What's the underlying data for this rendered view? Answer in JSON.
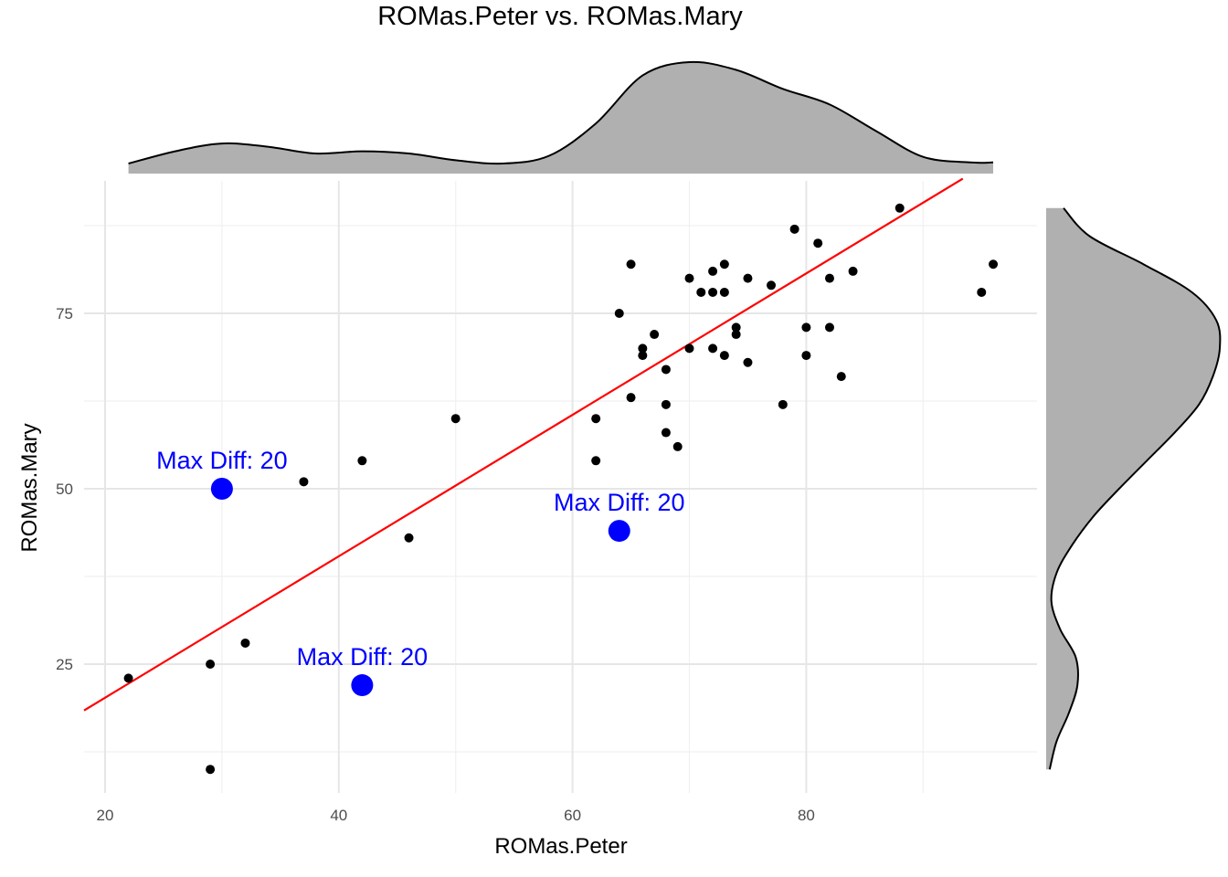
{
  "chart_data": {
    "type": "scatter",
    "title": "ROMas.Peter vs. ROMas.Mary",
    "xlabel": "ROMas.Peter",
    "ylabel": "ROMas.Mary",
    "xlim": [
      18,
      98
    ],
    "ylim": [
      6,
      94
    ],
    "x_ticks": [
      20,
      40,
      60,
      80
    ],
    "y_ticks": [
      25,
      50,
      75
    ],
    "grid": true,
    "legend": "none",
    "point_color": "#000000",
    "regression_line": {
      "color": "#ff0000",
      "from": [
        18.2,
        18.4
      ],
      "to": [
        93.4,
        94.2
      ]
    },
    "points": [
      [
        22,
        23
      ],
      [
        29,
        25
      ],
      [
        29,
        10
      ],
      [
        32,
        28
      ],
      [
        37,
        51
      ],
      [
        42,
        54
      ],
      [
        46,
        43
      ],
      [
        50,
        60
      ],
      [
        62,
        60
      ],
      [
        62,
        54
      ],
      [
        64,
        75
      ],
      [
        65,
        82
      ],
      [
        65,
        63
      ],
      [
        66,
        70
      ],
      [
        66,
        69
      ],
      [
        67,
        72
      ],
      [
        68,
        67
      ],
      [
        68,
        62
      ],
      [
        68,
        58
      ],
      [
        69,
        56
      ],
      [
        70,
        80
      ],
      [
        70,
        70
      ],
      [
        71,
        78
      ],
      [
        72,
        81
      ],
      [
        72,
        78
      ],
      [
        72,
        70
      ],
      [
        73,
        82
      ],
      [
        73,
        78
      ],
      [
        73,
        69
      ],
      [
        74,
        73
      ],
      [
        74,
        72
      ],
      [
        75,
        80
      ],
      [
        75,
        68
      ],
      [
        77,
        79
      ],
      [
        78,
        62
      ],
      [
        79,
        87
      ],
      [
        80,
        73
      ],
      [
        80,
        69
      ],
      [
        81,
        85
      ],
      [
        82,
        80
      ],
      [
        82,
        73
      ],
      [
        83,
        66
      ],
      [
        84,
        81
      ],
      [
        88,
        90
      ],
      [
        95,
        78
      ],
      [
        96,
        82
      ]
    ],
    "highlighted": {
      "color": "#0000ff",
      "points": [
        {
          "x": 30,
          "y": 50,
          "label": "Max Diff: 20"
        },
        {
          "x": 64,
          "y": 44,
          "label": "Max Diff: 20"
        },
        {
          "x": 42,
          "y": 22,
          "label": "Max Diff: 20"
        }
      ]
    },
    "marginal_x_density": {
      "fill": "#b0b0b0",
      "x": [
        22,
        26,
        30,
        34,
        38,
        42,
        46,
        50,
        54,
        58,
        62,
        66,
        70,
        74,
        78,
        82,
        86,
        90,
        94,
        96
      ],
      "density": [
        0.09,
        0.2,
        0.27,
        0.24,
        0.18,
        0.2,
        0.18,
        0.12,
        0.09,
        0.16,
        0.45,
        0.88,
        1.0,
        0.93,
        0.76,
        0.62,
        0.38,
        0.15,
        0.1,
        0.1
      ]
    },
    "marginal_y_density": {
      "fill": "#b0b0b0",
      "y": [
        10,
        14,
        18,
        22,
        26,
        30,
        34,
        38,
        42,
        46,
        50,
        54,
        58,
        62,
        66,
        70,
        74,
        78,
        82,
        86,
        90
      ],
      "density": [
        0.02,
        0.06,
        0.13,
        0.18,
        0.17,
        0.08,
        0.03,
        0.06,
        0.15,
        0.27,
        0.42,
        0.58,
        0.74,
        0.88,
        0.96,
        1.0,
        0.98,
        0.84,
        0.56,
        0.25,
        0.1
      ]
    }
  }
}
